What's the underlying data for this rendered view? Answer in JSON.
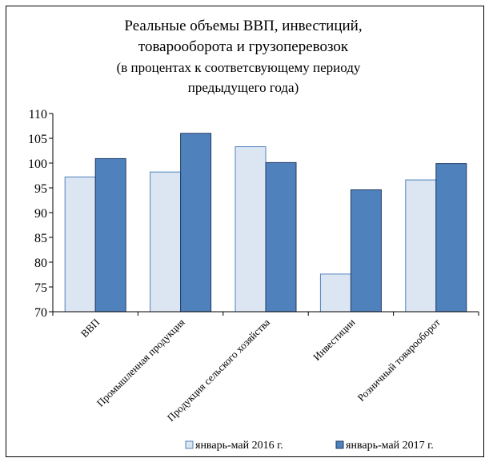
{
  "chart_data": {
    "type": "bar",
    "title_lines": [
      "Реальные объемы ВВП, инвестиций,",
      "товарооборота и грузоперевозок"
    ],
    "subtitle_lines": [
      "(в процентах к соответсвующему периоду",
      "предыдущего года)"
    ],
    "categories": [
      "ВВП",
      "Промышленная продукция",
      "Продукция сельского хозяйства",
      "Инвестиции",
      "Розничный товарооборот"
    ],
    "series": [
      {
        "name": "январь-май 2016 г.",
        "values": [
          97.2,
          98.2,
          103.3,
          77.6,
          96.6
        ],
        "color": "#dce6f2",
        "stroke": "#4f81bd"
      },
      {
        "name": "январь-май 2017 г.",
        "values": [
          100.9,
          106.0,
          100.1,
          94.6,
          99.9
        ],
        "color": "#4f81bd",
        "stroke": "#1f3a63"
      }
    ],
    "ylim": [
      70,
      110
    ],
    "yticks": [
      "70",
      "75",
      "80",
      "85",
      "90",
      "95",
      "100",
      "105",
      "110"
    ],
    "grid": false,
    "legend": "bottom"
  }
}
